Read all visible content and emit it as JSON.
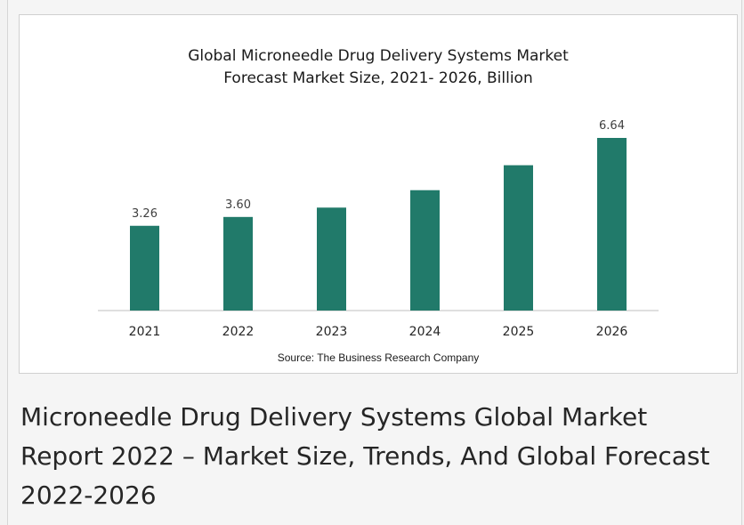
{
  "chart_data": {
    "type": "bar",
    "title_line1": "Global Microneedle Drug Delivery Systems Market",
    "title_line2": "Forecast Market Size, 2021- 2026, Billion",
    "categories": [
      "2021",
      "2022",
      "2023",
      "2024",
      "2025",
      "2026"
    ],
    "values": [
      3.26,
      3.6,
      3.96,
      4.63,
      5.59,
      6.64
    ],
    "data_labels": [
      "3.26",
      "3.60",
      "",
      "",
      "",
      "6.64"
    ],
    "xlabel": "",
    "ylabel": "",
    "ylim": [
      0,
      6.64
    ],
    "grid": false,
    "bar_color": "#217a6a"
  },
  "source": "Source: The Business Research Company",
  "caption": "Microneedle Drug Delivery Systems Global Market Report 2022 – Market Size, Trends, And Global Forecast 2022-2026"
}
